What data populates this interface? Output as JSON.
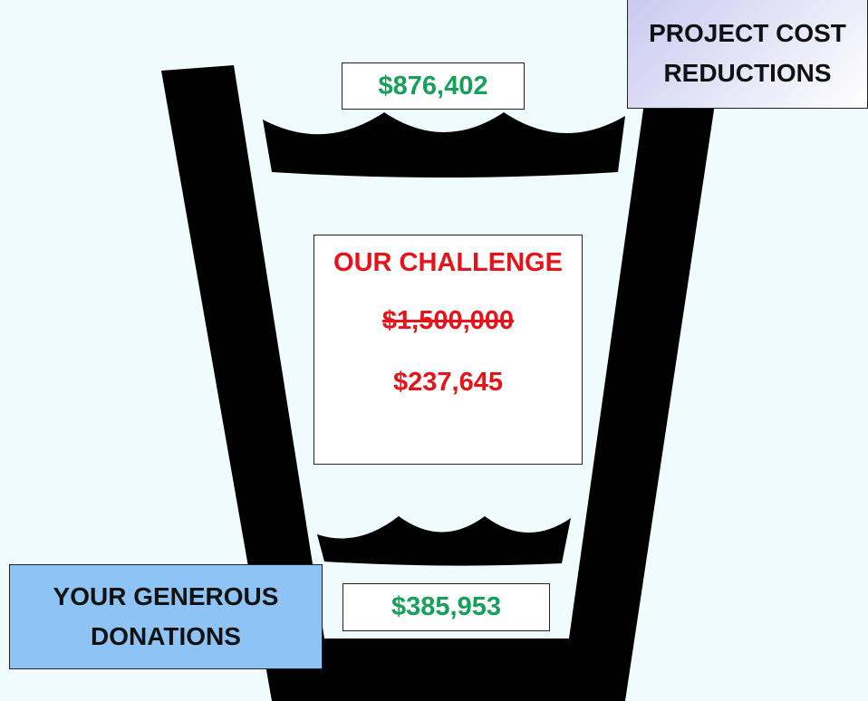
{
  "top_label": {
    "lines": [
      "PROJECT COST",
      "REDUCTIONS"
    ]
  },
  "top_amount": "$876,402",
  "challenge": {
    "title": "OUR CHALLENGE",
    "original_amount": "$1,500,000",
    "current_amount": "$237,645"
  },
  "bottom_label": {
    "lines": [
      "YOUR GENEROUS",
      "DONATIONS"
    ]
  },
  "bottom_amount": "$385,953"
}
